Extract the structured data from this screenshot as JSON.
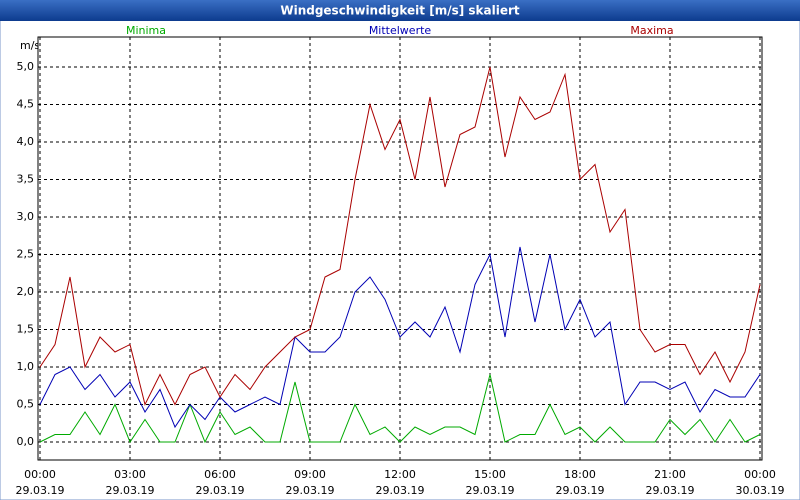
{
  "chart_data": {
    "type": "line",
    "title": "Windgeschwindigkeit [m/s] skaliert",
    "y_unit": "m/s",
    "x": [
      0,
      0.5,
      1,
      1.5,
      2,
      2.5,
      3,
      3.5,
      4,
      4.5,
      5,
      5.5,
      6,
      6.5,
      7,
      7.5,
      8,
      8.5,
      9,
      9.5,
      10,
      10.5,
      11,
      11.5,
      12,
      12.5,
      13,
      13.5,
      14,
      14.5,
      15,
      15.5,
      16,
      16.5,
      17,
      17.5,
      18,
      18.5,
      19,
      19.5,
      20,
      20.5,
      21,
      21.5,
      22,
      22.5,
      23,
      23.5,
      24
    ],
    "series": [
      {
        "name": "Minima",
        "color": "#00aa00",
        "values": [
          0.0,
          0.1,
          0.1,
          0.4,
          0.1,
          0.5,
          0.0,
          0.3,
          0.0,
          0.0,
          0.5,
          0.0,
          0.4,
          0.1,
          0.2,
          0.0,
          0.0,
          0.8,
          0.0,
          0.0,
          0.0,
          0.5,
          0.1,
          0.2,
          0.0,
          0.2,
          0.1,
          0.2,
          0.2,
          0.1,
          0.9,
          0.0,
          0.1,
          0.1,
          0.5,
          0.1,
          0.2,
          0.0,
          0.2,
          0.0,
          0.0,
          0.0,
          0.3,
          0.1,
          0.3,
          0.0,
          0.3,
          0.0,
          0.1
        ]
      },
      {
        "name": "Mittelwerte",
        "color": "#0000b4",
        "values": [
          0.5,
          0.9,
          1.0,
          0.7,
          0.9,
          0.6,
          0.8,
          0.4,
          0.7,
          0.2,
          0.5,
          0.3,
          0.6,
          0.4,
          0.5,
          0.6,
          0.5,
          1.4,
          1.2,
          1.2,
          1.4,
          2.0,
          2.2,
          1.9,
          1.4,
          1.6,
          1.4,
          1.8,
          1.2,
          2.1,
          2.5,
          1.4,
          2.6,
          1.6,
          2.5,
          1.5,
          1.9,
          1.4,
          1.6,
          0.5,
          0.8,
          0.8,
          0.7,
          0.8,
          0.4,
          0.7,
          0.6,
          0.6,
          0.9
        ]
      },
      {
        "name": "Maxima",
        "color": "#aa0000",
        "values": [
          1.0,
          1.3,
          2.2,
          1.0,
          1.4,
          1.2,
          1.3,
          0.5,
          0.9,
          0.5,
          0.9,
          1.0,
          0.6,
          0.9,
          0.7,
          1.0,
          1.2,
          1.4,
          1.5,
          2.2,
          2.3,
          3.5,
          4.5,
          3.9,
          4.3,
          3.5,
          4.6,
          3.4,
          4.1,
          4.2,
          5.0,
          3.8,
          4.6,
          4.3,
          4.4,
          4.9,
          3.5,
          3.7,
          2.8,
          3.1,
          1.5,
          1.2,
          1.3,
          1.3,
          0.9,
          1.2,
          0.8,
          1.2,
          2.1
        ]
      }
    ],
    "xlim": [
      0,
      24
    ],
    "xticks": [
      {
        "value": 0,
        "label": "00:00",
        "date": "29.03.19"
      },
      {
        "value": 3,
        "label": "03:00",
        "date": "29.03.19"
      },
      {
        "value": 6,
        "label": "06:00",
        "date": "29.03.19"
      },
      {
        "value": 9,
        "label": "09:00",
        "date": "29.03.19"
      },
      {
        "value": 12,
        "label": "12:00",
        "date": "29.03.19"
      },
      {
        "value": 15,
        "label": "15:00",
        "date": "29.03.19"
      },
      {
        "value": 18,
        "label": "18:00",
        "date": "29.03.19"
      },
      {
        "value": 21,
        "label": "21:00",
        "date": "29.03.19"
      },
      {
        "value": 24,
        "label": "00:00",
        "date": "30.03.19"
      }
    ],
    "ylim": [
      -0.24,
      5.4
    ],
    "yticks": [
      {
        "value": 0,
        "label": "0,0"
      },
      {
        "value": 0.5,
        "label": "0,5"
      },
      {
        "value": 1,
        "label": "1,0"
      },
      {
        "value": 1.5,
        "label": "1,5"
      },
      {
        "value": 2,
        "label": "2,0"
      },
      {
        "value": 2.5,
        "label": "2,5"
      },
      {
        "value": 3,
        "label": "3,0"
      },
      {
        "value": 3.5,
        "label": "3,5"
      },
      {
        "value": 4,
        "label": "4,0"
      },
      {
        "value": 4.5,
        "label": "4,5"
      },
      {
        "value": 5,
        "label": "5,0"
      }
    ],
    "grid": true,
    "legend": "top"
  }
}
